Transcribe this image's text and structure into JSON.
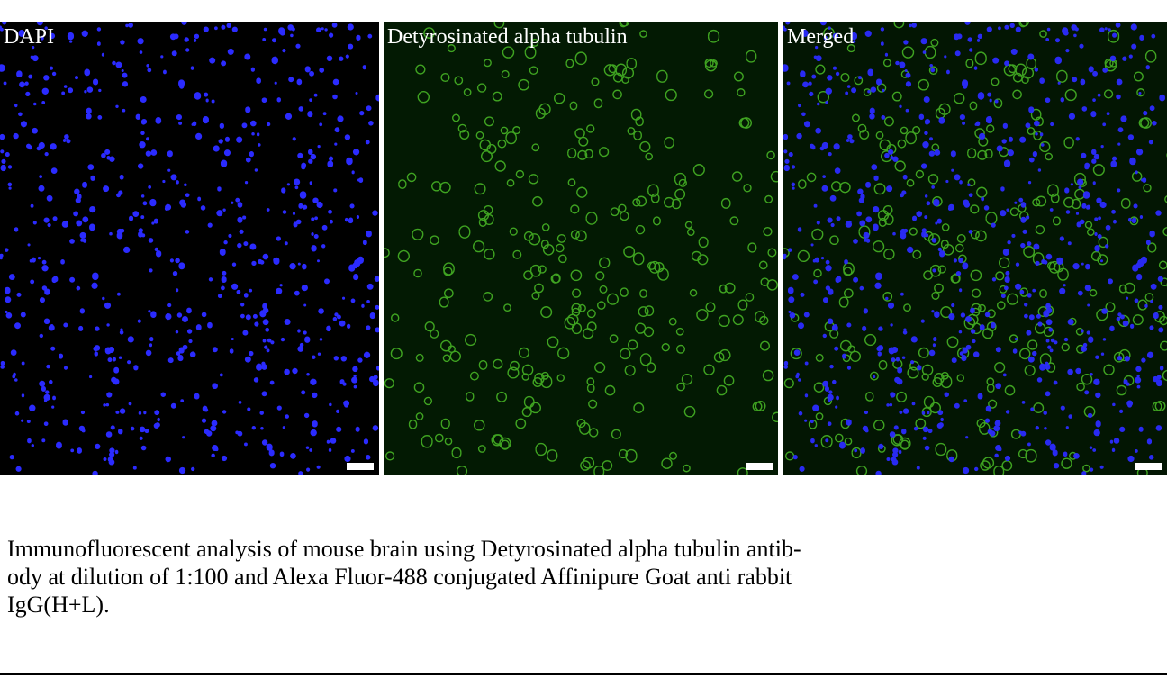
{
  "figure": {
    "panels": [
      {
        "label": "DAPI"
      },
      {
        "label": "Detyrosinated alpha tubulin"
      },
      {
        "label": "Merged"
      }
    ],
    "caption": [
      "Immunofluorescent analysis of mouse brain using Detyrosinated alpha tubulin antib-",
      "ody at dilution of 1:100 and Alexa Fluor-488 conjugated Affinipure Goat anti rabbit",
      "IgG(H+L)."
    ]
  }
}
